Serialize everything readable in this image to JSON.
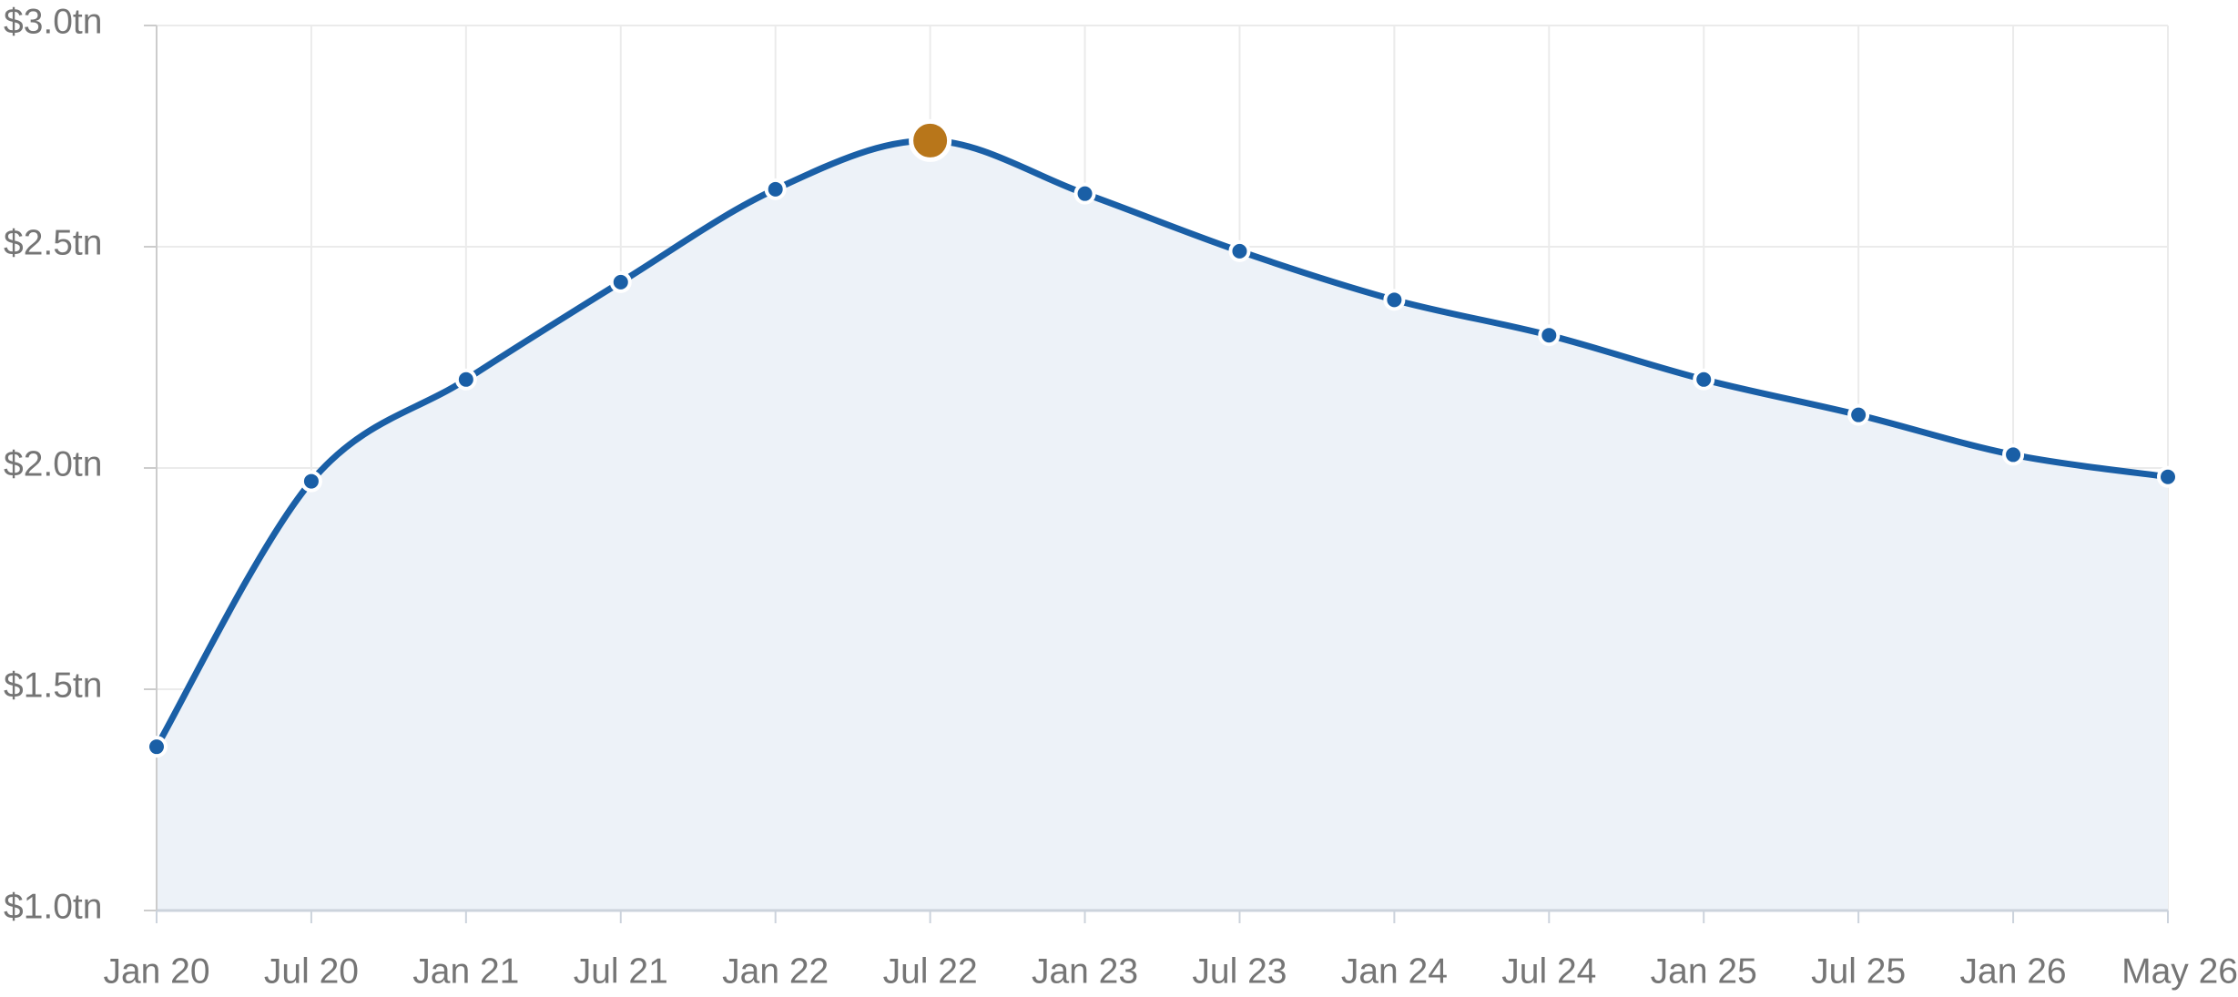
{
  "chart_data": {
    "type": "line",
    "categories": [
      "Jan 20",
      "Jul 20",
      "Jan 21",
      "Jul 21",
      "Jan 22",
      "Jul 22",
      "Jan 23",
      "Jul 23",
      "Jan 24",
      "Jul 24",
      "Jan 25",
      "Jul 25",
      "Jan 26",
      "May 26"
    ],
    "series": [
      {
        "color": "#1a5fa6",
        "values": [
          1.37,
          1.97,
          2.2,
          2.42,
          2.63,
          2.74,
          2.62,
          2.49,
          2.38,
          2.3,
          2.2,
          2.12,
          2.03,
          1.98
        ]
      }
    ],
    "area_color": "#edf2f8",
    "highlight_index": 5,
    "highlight_color": "#b8761a",
    "ylim": [
      1.0,
      3.0
    ],
    "yticks": [
      {
        "value": 1.0,
        "label": "$1.0tn"
      },
      {
        "value": 1.5,
        "label": "$1.5tn"
      },
      {
        "value": 2.0,
        "label": "$2.0tn"
      },
      {
        "value": 2.5,
        "label": "$2.5tn"
      },
      {
        "value": 3.0,
        "label": "$3.0tn"
      }
    ],
    "grid": true
  }
}
